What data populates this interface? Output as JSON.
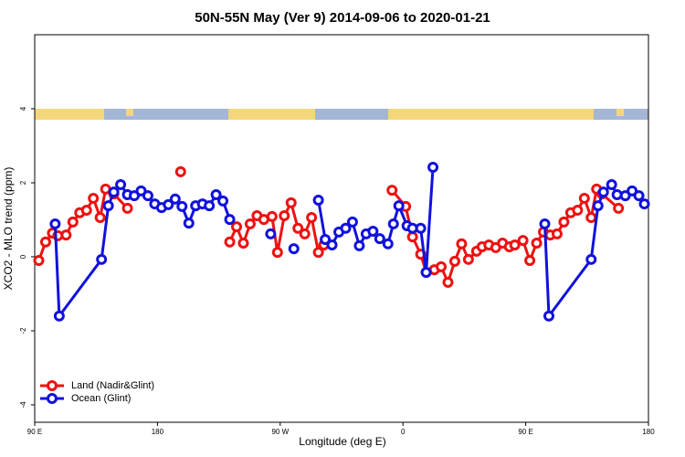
{
  "chart_data": {
    "type": "line",
    "title": "50N-55N May (Ver 9)   2014-09-06 to 2020-01-21",
    "x_label": "Longitude (deg E)",
    "y_label": "XCO2 - MLO trend (ppm)",
    "xlim": [
      90,
      540
    ],
    "ylim": [
      -4.47,
      6
    ],
    "xticks": [
      {
        "value": 90,
        "label": "90 E"
      },
      {
        "value": 180,
        "label": "180"
      },
      {
        "value": 270,
        "label": "90 W"
      },
      {
        "value": 360,
        "label": "0"
      },
      {
        "value": 450,
        "label": "90 E"
      },
      {
        "value": 540,
        "label": "180"
      }
    ],
    "yticks": [
      -4,
      -2,
      0,
      2,
      4
    ],
    "legend": "bottom-left",
    "series": [
      {
        "name": "Land (Nadir&Glint)",
        "color": "#ee1111",
        "x": [
          93,
          98,
          103,
          107,
          113,
          118,
          123,
          128,
          133,
          138,
          142,
          148,
          158,
          null,
          197,
          null,
          233,
          238,
          243,
          248,
          253,
          258,
          264,
          268,
          273,
          278,
          283,
          288,
          293,
          298,
          302,
          null,
          352,
          362,
          367,
          373,
          377,
          383,
          388,
          393,
          398,
          403,
          408,
          414,
          418,
          423,
          428,
          433,
          438,
          442,
          448,
          453,
          458,
          463,
          468,
          473,
          478,
          483,
          488,
          493,
          498,
          502,
          506,
          518
        ],
        "values": [
          -0.1,
          0.4,
          0.64,
          0.57,
          0.59,
          0.94,
          1.19,
          1.26,
          1.58,
          1.06,
          1.83,
          1.7,
          1.31,
          null,
          2.3,
          null,
          0.4,
          0.81,
          0.37,
          0.89,
          1.11,
          1.01,
          1.09,
          0.12,
          1.11,
          1.46,
          0.77,
          0.62,
          1.06,
          0.12,
          0.32,
          null,
          1.8,
          1.36,
          0.54,
          0.07,
          -0.42,
          -0.35,
          -0.27,
          -0.69,
          -0.12,
          0.35,
          -0.07,
          0.15,
          0.27,
          0.32,
          0.25,
          0.37,
          0.27,
          0.32,
          0.44,
          -0.1,
          0.37,
          0.67,
          0.59,
          0.62,
          0.94,
          1.19,
          1.26,
          1.58,
          1.06,
          1.83,
          1.7,
          1.31
        ]
      },
      {
        "name": "Ocean (Glint)",
        "color": "#1111dd",
        "x": [
          105,
          108,
          139,
          144,
          148,
          153,
          158,
          163,
          168,
          173,
          178,
          183,
          188,
          193,
          198,
          203,
          208,
          213,
          218,
          223,
          228,
          233,
          null,
          263,
          null,
          280,
          null,
          298,
          303,
          308,
          313,
          318,
          323,
          328,
          333,
          338,
          343,
          349,
          353,
          357,
          363,
          367,
          373,
          377,
          382,
          null,
          464,
          467,
          498,
          503,
          507,
          513,
          517,
          523,
          528,
          533,
          537
        ],
        "values": [
          0.89,
          -1.6,
          -0.07,
          1.38,
          1.75,
          1.95,
          1.68,
          1.65,
          1.78,
          1.65,
          1.43,
          1.33,
          1.41,
          1.56,
          1.36,
          0.91,
          1.38,
          1.43,
          1.38,
          1.68,
          1.51,
          1.01,
          null,
          0.62,
          null,
          0.22,
          null,
          1.53,
          0.47,
          0.32,
          0.67,
          0.77,
          0.94,
          0.3,
          0.62,
          0.69,
          0.49,
          0.35,
          0.89,
          1.38,
          0.84,
          0.77,
          0.77,
          -0.42,
          2.42,
          null,
          0.89,
          -1.6,
          -0.07,
          1.38,
          1.75,
          1.95,
          1.68,
          1.65,
          1.78,
          1.65,
          1.43
        ]
      }
    ]
  }
}
